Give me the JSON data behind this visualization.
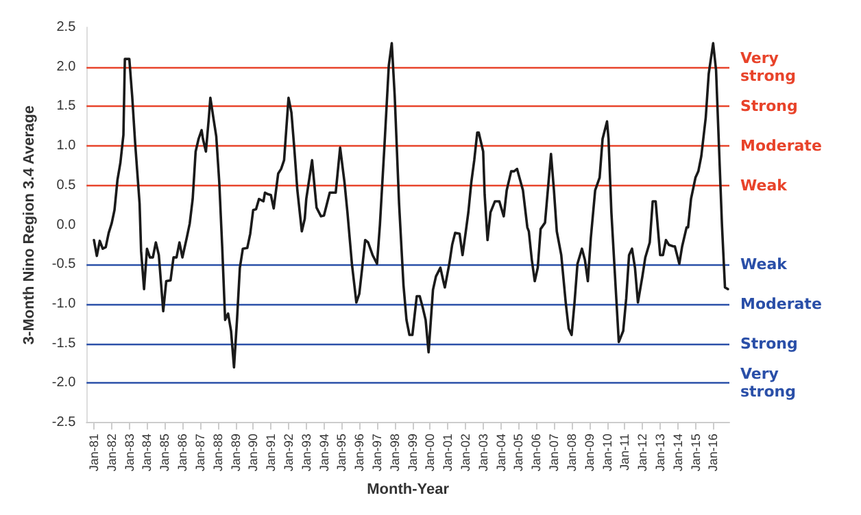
{
  "chart_data": {
    "type": "line",
    "xlabel": "Month-Year",
    "ylabel": "3-Month Nino Region 3.4 Average",
    "x": [
      "1981-01",
      "1981-03",
      "1981-05",
      "1981-07",
      "1981-09",
      "1981-11",
      "1982-01",
      "1982-03",
      "1982-05",
      "1982-07",
      "1982-09",
      "1982-10",
      "1983-01",
      "1983-03",
      "1983-05",
      "1983-08",
      "1983-09",
      "1983-11",
      "1984-01",
      "1984-03",
      "1984-05",
      "1984-07",
      "1984-09",
      "1984-12",
      "1985-02",
      "1985-05",
      "1985-07",
      "1985-09",
      "1985-11",
      "1986-01",
      "1986-04",
      "1986-06",
      "1986-08",
      "1986-10",
      "1986-12",
      "1987-02",
      "1987-03",
      "1987-05",
      "1987-07",
      "1987-08",
      "1987-10",
      "1987-12",
      "1988-02",
      "1988-04",
      "1988-06",
      "1988-08",
      "1988-10",
      "1988-12",
      "1989-02",
      "1989-04",
      "1989-06",
      "1989-09",
      "1989-11",
      "1990-01",
      "1990-03",
      "1990-05",
      "1990-08",
      "1990-09",
      "1990-11",
      "1991-01",
      "1991-03",
      "1991-06",
      "1991-08",
      "1991-10",
      "1992-01",
      "1992-03",
      "1992-05",
      "1992-07",
      "1992-10",
      "1992-12",
      "1993-01",
      "1993-05",
      "1993-08",
      "1993-11",
      "1994-01",
      "1994-05",
      "1994-09",
      "1994-12",
      "1995-03",
      "1995-05",
      "1995-08",
      "1995-11",
      "1996-01",
      "1996-03",
      "1996-05",
      "1996-07",
      "1996-10",
      "1997-01",
      "1997-03",
      "1997-06",
      "1997-09",
      "1997-11",
      "1998-01",
      "1998-04",
      "1998-07",
      "1998-09",
      "1998-11",
      "1999-01",
      "1999-04",
      "1999-06",
      "1999-08",
      "1999-10",
      "1999-12",
      "2000-03",
      "2000-05",
      "2000-08",
      "2000-10",
      "2000-11",
      "2001-02",
      "2001-04",
      "2001-06",
      "2001-09",
      "2001-11",
      "2002-01",
      "2002-03",
      "2002-05",
      "2002-07",
      "2002-09",
      "2002-10",
      "2003-01",
      "2003-02",
      "2003-04",
      "2003-06",
      "2003-09",
      "2003-12",
      "2004-03",
      "2004-05",
      "2004-08",
      "2004-10",
      "2004-12",
      "2005-02",
      "2005-04",
      "2005-07",
      "2005-08",
      "2005-10",
      "2005-12",
      "2006-02",
      "2006-04",
      "2006-07",
      "2006-11",
      "2007-01",
      "2007-03",
      "2007-06",
      "2007-09",
      "2007-11",
      "2008-01",
      "2008-03",
      "2008-05",
      "2008-08",
      "2008-10",
      "2008-12",
      "2009-02",
      "2009-05",
      "2009-08",
      "2009-10",
      "2010-01",
      "2010-02",
      "2010-04",
      "2010-07",
      "2010-09",
      "2010-12",
      "2011-02",
      "2011-04",
      "2011-06",
      "2011-08",
      "2011-10",
      "2012-01",
      "2012-03",
      "2012-06",
      "2012-08",
      "2012-10",
      "2013-01",
      "2013-03",
      "2013-05",
      "2013-07",
      "2013-10",
      "2013-11",
      "2014-02",
      "2014-04",
      "2014-07",
      "2014-08",
      "2014-10",
      "2015-01",
      "2015-03",
      "2015-05",
      "2015-08",
      "2015-10",
      "2016-01",
      "2016-03",
      "2016-05",
      "2016-07",
      "2016-09",
      "2016-11"
    ],
    "series": [
      {
        "color": "#1a1a1a",
        "values": [
          -0.19,
          -0.39,
          -0.2,
          -0.3,
          -0.28,
          -0.1,
          0.02,
          0.19,
          0.57,
          0.79,
          1.14,
          2.1,
          2.1,
          1.63,
          1.04,
          0.27,
          -0.33,
          -0.81,
          -0.3,
          -0.41,
          -0.41,
          -0.22,
          -0.38,
          -1.09,
          -0.71,
          -0.7,
          -0.41,
          -0.41,
          -0.22,
          -0.41,
          -0.16,
          0.02,
          0.33,
          0.93,
          1.09,
          1.2,
          1.09,
          0.93,
          1.36,
          1.61,
          1.36,
          1.12,
          0.54,
          -0.27,
          -1.2,
          -1.12,
          -1.34,
          -1.8,
          -1.2,
          -0.54,
          -0.3,
          -0.29,
          -0.11,
          0.19,
          0.2,
          0.33,
          0.3,
          0.41,
          0.39,
          0.38,
          0.21,
          0.65,
          0.71,
          0.82,
          1.61,
          1.42,
          0.95,
          0.44,
          -0.08,
          0.08,
          0.33,
          0.82,
          0.22,
          0.11,
          0.12,
          0.41,
          0.41,
          0.98,
          0.54,
          0.16,
          -0.49,
          -0.98,
          -0.87,
          -0.54,
          -0.19,
          -0.22,
          -0.38,
          -0.49,
          0.0,
          0.98,
          2.02,
          2.3,
          1.63,
          0.27,
          -0.76,
          -1.2,
          -1.39,
          -1.39,
          -0.9,
          -0.9,
          -1.04,
          -1.2,
          -1.61,
          -0.82,
          -0.65,
          -0.54,
          -0.71,
          -0.79,
          -0.49,
          -0.25,
          -0.1,
          -0.11,
          -0.38,
          -0.11,
          0.16,
          0.54,
          0.82,
          1.17,
          1.17,
          0.93,
          0.38,
          -0.19,
          0.16,
          0.3,
          0.3,
          0.11,
          0.44,
          0.68,
          0.68,
          0.71,
          0.57,
          0.44,
          -0.03,
          -0.08,
          -0.44,
          -0.71,
          -0.54,
          -0.05,
          0.03,
          0.9,
          0.44,
          -0.08,
          -0.38,
          -0.98,
          -1.31,
          -1.39,
          -0.98,
          -0.49,
          -0.3,
          -0.44,
          -0.71,
          -0.16,
          0.44,
          0.6,
          1.09,
          1.31,
          1.09,
          0.16,
          -0.82,
          -1.48,
          -1.34,
          -0.93,
          -0.38,
          -0.3,
          -0.54,
          -0.98,
          -0.65,
          -0.41,
          -0.22,
          0.3,
          0.3,
          -0.38,
          -0.38,
          -0.19,
          -0.25,
          -0.27,
          -0.27,
          -0.49,
          -0.27,
          -0.03,
          -0.03,
          0.33,
          0.6,
          0.68,
          0.87,
          1.36,
          1.91,
          2.3,
          1.96,
          0.98,
          0.0,
          -0.79,
          -0.81
        ]
      }
    ],
    "xlim": [
      "1980-08",
      "2016-12"
    ],
    "xticks": [
      {
        "value": "1981-01",
        "label": "Jan-81"
      },
      {
        "value": "1982-01",
        "label": "Jan-82"
      },
      {
        "value": "1983-01",
        "label": "Jan-83"
      },
      {
        "value": "1984-01",
        "label": "Jan-84"
      },
      {
        "value": "1985-01",
        "label": "Jan-85"
      },
      {
        "value": "1986-01",
        "label": "Jan-86"
      },
      {
        "value": "1987-01",
        "label": "Jan-87"
      },
      {
        "value": "1988-01",
        "label": "Jan-88"
      },
      {
        "value": "1989-01",
        "label": "Jan-89"
      },
      {
        "value": "1990-01",
        "label": "Jan-90"
      },
      {
        "value": "1991-01",
        "label": "Jan-91"
      },
      {
        "value": "1992-01",
        "label": "Jan-92"
      },
      {
        "value": "1993-01",
        "label": "Jan-93"
      },
      {
        "value": "1994-01",
        "label": "Jan-94"
      },
      {
        "value": "1995-01",
        "label": "Jan-95"
      },
      {
        "value": "1996-01",
        "label": "Jan-96"
      },
      {
        "value": "1997-01",
        "label": "Jan-97"
      },
      {
        "value": "1998-01",
        "label": "Jan-98"
      },
      {
        "value": "1999-01",
        "label": "Jan-99"
      },
      {
        "value": "2000-01",
        "label": "Jan-00"
      },
      {
        "value": "2001-01",
        "label": "Jan-01"
      },
      {
        "value": "2002-01",
        "label": "Jan-02"
      },
      {
        "value": "2003-01",
        "label": "Jan-03"
      },
      {
        "value": "2004-01",
        "label": "Jan-04"
      },
      {
        "value": "2005-01",
        "label": "Jan-05"
      },
      {
        "value": "2006-01",
        "label": "Jan-06"
      },
      {
        "value": "2007-01",
        "label": "Jan-07"
      },
      {
        "value": "2008-01",
        "label": "Jan-08"
      },
      {
        "value": "2009-01",
        "label": "Jan-09"
      },
      {
        "value": "2010-01",
        "label": "Jan-10"
      },
      {
        "value": "2011-01",
        "label": "Jan-11"
      },
      {
        "value": "2012-01",
        "label": "Jan-12"
      },
      {
        "value": "2013-01",
        "label": "Jan-13"
      },
      {
        "value": "2014-01",
        "label": "Jan-14"
      },
      {
        "value": "2015-01",
        "label": "Jan-15"
      },
      {
        "value": "2016-01",
        "label": "Jan-16"
      }
    ],
    "ylim": [
      -2.5,
      2.5
    ],
    "yticks": [
      {
        "value": -2.5,
        "label": "-2.5"
      },
      {
        "value": -2,
        "label": "-2.0"
      },
      {
        "value": -1.5,
        "label": "-1.5"
      },
      {
        "value": -1,
        "label": "-1.0"
      },
      {
        "value": -0.5,
        "label": "-0.5"
      },
      {
        "value": 0,
        "label": "0.0"
      },
      {
        "value": 0.5,
        "label": "0.5"
      },
      {
        "value": 1,
        "label": "1.0"
      },
      {
        "value": 1.5,
        "label": "1.5"
      },
      {
        "value": 2,
        "label": "2.0"
      },
      {
        "value": 2.5,
        "label": "2.5"
      }
    ],
    "ref_lines": [
      {
        "axis": "y",
        "value": 2,
        "label": "Very strong",
        "color": "#e8432a"
      },
      {
        "axis": "y",
        "value": 1.5,
        "label": "Strong",
        "color": "#e8432a"
      },
      {
        "axis": "y",
        "value": 1,
        "label": "Moderate",
        "color": "#e8432a"
      },
      {
        "axis": "y",
        "value": 0.5,
        "label": "Weak",
        "color": "#e8432a"
      },
      {
        "axis": "y",
        "value": -0.5,
        "label": "Weak",
        "color": "#2a4fa8"
      },
      {
        "axis": "y",
        "value": -1,
        "label": "Moderate",
        "color": "#2a4fa8"
      },
      {
        "axis": "y",
        "value": -1.5,
        "label": "Strong",
        "color": "#2a4fa8"
      },
      {
        "axis": "y",
        "value": -2,
        "label": "Very strong",
        "color": "#2a4fa8"
      }
    ],
    "grid": false,
    "marker": "none",
    "line_style": "solid"
  }
}
